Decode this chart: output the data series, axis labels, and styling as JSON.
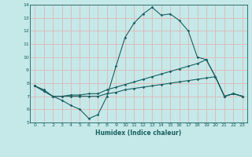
{
  "xlabel": "Humidex (Indice chaleur)",
  "ylabel": "",
  "bg_color": "#c5e8e8",
  "grid_color": "#e0b8b8",
  "line_color": "#1a6060",
  "xlim": [
    -0.5,
    23.5
  ],
  "ylim": [
    5,
    14
  ],
  "yticks": [
    5,
    6,
    7,
    8,
    9,
    10,
    11,
    12,
    13,
    14
  ],
  "xticks": [
    0,
    1,
    2,
    3,
    4,
    5,
    6,
    7,
    8,
    9,
    10,
    11,
    12,
    13,
    14,
    15,
    16,
    17,
    18,
    19,
    20,
    21,
    22,
    23
  ],
  "line1_x": [
    0,
    1,
    2,
    3,
    4,
    5,
    6,
    7,
    8,
    9,
    10,
    11,
    12,
    13,
    14,
    15,
    16,
    17,
    18,
    19,
    20,
    21,
    22,
    23
  ],
  "line1_y": [
    7.8,
    7.5,
    7.0,
    6.7,
    6.3,
    6.0,
    5.3,
    5.6,
    7.0,
    9.3,
    11.5,
    12.6,
    13.3,
    13.8,
    13.2,
    13.3,
    12.8,
    12.0,
    10.0,
    9.8,
    8.5,
    7.0,
    7.2,
    7.0
  ],
  "line2_x": [
    0,
    1,
    2,
    3,
    4,
    5,
    6,
    7,
    8,
    9,
    10,
    11,
    12,
    13,
    14,
    15,
    16,
    17,
    18,
    19,
    20,
    21,
    22,
    23
  ],
  "line2_y": [
    7.8,
    7.4,
    7.0,
    7.0,
    7.1,
    7.1,
    7.2,
    7.2,
    7.5,
    7.7,
    7.9,
    8.1,
    8.3,
    8.5,
    8.7,
    8.9,
    9.1,
    9.3,
    9.5,
    9.8,
    8.5,
    7.0,
    7.2,
    7.0
  ],
  "line3_x": [
    0,
    1,
    2,
    3,
    4,
    5,
    6,
    7,
    8,
    9,
    10,
    11,
    12,
    13,
    14,
    15,
    16,
    17,
    18,
    19,
    20,
    21,
    22,
    23
  ],
  "line3_y": [
    7.8,
    7.4,
    7.0,
    7.0,
    7.0,
    7.0,
    7.0,
    7.0,
    7.2,
    7.3,
    7.5,
    7.6,
    7.7,
    7.8,
    7.9,
    8.0,
    8.1,
    8.2,
    8.3,
    8.4,
    8.5,
    7.0,
    7.2,
    7.0
  ]
}
